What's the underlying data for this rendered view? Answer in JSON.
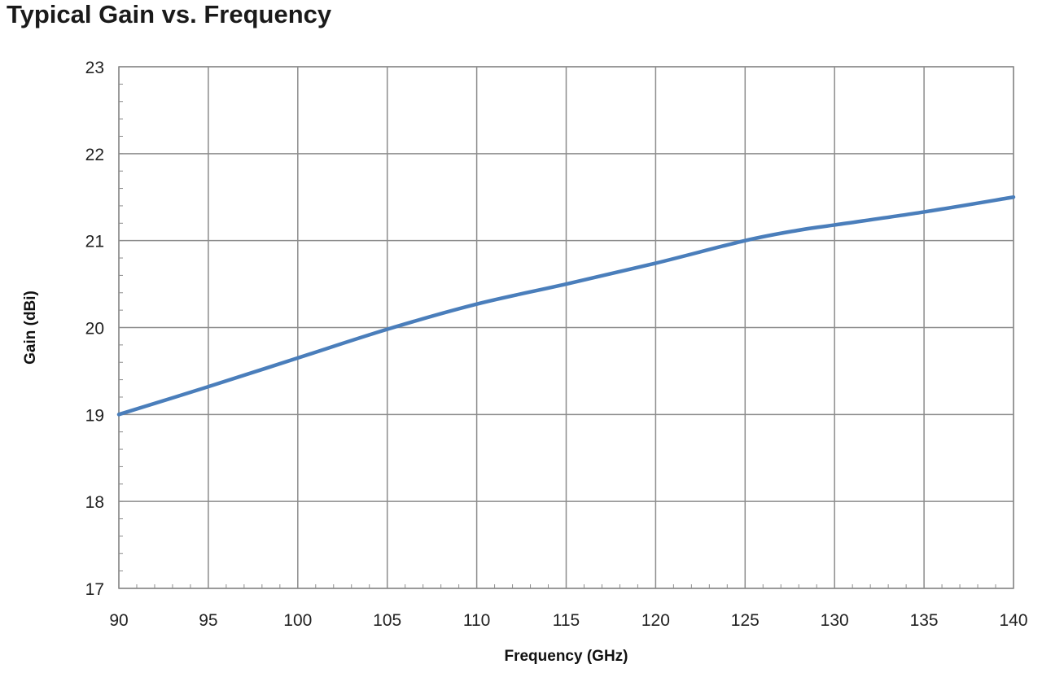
{
  "chart_data": {
    "type": "line",
    "title": "Typical Gain vs. Frequency",
    "xlabel": "Frequency (GHz)",
    "ylabel": "Gain (dBi)",
    "xlim": [
      90,
      140
    ],
    "ylim": [
      17,
      23
    ],
    "xticks": [
      90,
      95,
      100,
      105,
      110,
      115,
      120,
      125,
      130,
      135,
      140
    ],
    "yticks": [
      17,
      18,
      19,
      20,
      21,
      22,
      23
    ],
    "xtick_labels": [
      "90",
      "95",
      "100",
      "105",
      "110",
      "115",
      "120",
      "125",
      "130",
      "135",
      "140"
    ],
    "ytick_labels": [
      "17",
      "18",
      "19",
      "20",
      "21",
      "22",
      "23"
    ],
    "grid": true,
    "legend": "none",
    "series": [
      {
        "color": "#4a7ebb",
        "x": [
          90,
          95,
          100,
          105,
          110,
          115,
          120,
          125,
          128,
          130,
          135,
          140
        ],
        "y": [
          19.0,
          19.32,
          19.65,
          19.98,
          20.27,
          20.5,
          20.74,
          21.0,
          21.12,
          21.18,
          21.33,
          21.5
        ]
      }
    ]
  }
}
